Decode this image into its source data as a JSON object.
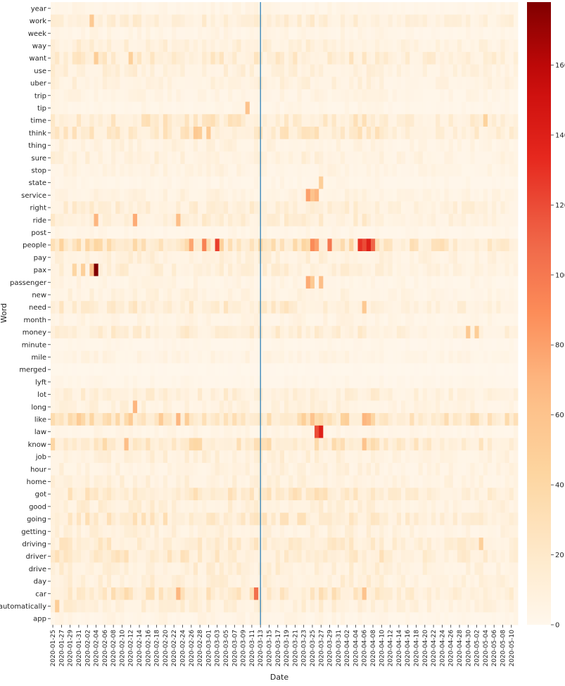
{
  "chart_data": {
    "type": "heatmap",
    "xlabel": "Date",
    "ylabel": "Word",
    "rows": [
      "year",
      "work",
      "week",
      "way",
      "want",
      "use",
      "uber",
      "trip",
      "tip",
      "time",
      "think",
      "thing",
      "sure",
      "stop",
      "state",
      "service",
      "right",
      "ride",
      "post",
      "people",
      "pay",
      "pax",
      "passenger",
      "new",
      "need",
      "month",
      "money",
      "minute",
      "mile",
      "merged",
      "lyft",
      "lot",
      "long",
      "like",
      "law",
      "know",
      "job",
      "hour",
      "home",
      "got",
      "good",
      "going",
      "getting",
      "driving",
      "driver",
      "drive",
      "day",
      "car",
      "automatically",
      "app"
    ],
    "date_start": "2020-01-25",
    "date_end": "2020-05-11",
    "x_tick_labels": [
      "2020-01-25",
      "2020-01-27",
      "2020-01-29",
      "2020-01-31",
      "2020-02-02",
      "2020-02-04",
      "2020-02-06",
      "2020-02-08",
      "2020-02-10",
      "2020-02-12",
      "2020-02-14",
      "2020-02-16",
      "2020-02-18",
      "2020-02-20",
      "2020-02-22",
      "2020-02-24",
      "2020-02-26",
      "2020-02-28",
      "2020-03-01",
      "2020-03-03",
      "2020-03-05",
      "2020-03-07",
      "2020-03-09",
      "2020-03-11",
      "2020-03-13",
      "2020-03-15",
      "2020-03-17",
      "2020-03-19",
      "2020-03-21",
      "2020-03-23",
      "2020-03-25",
      "2020-03-27",
      "2020-03-29",
      "2020-03-31",
      "2020-04-02",
      "2020-04-04",
      "2020-04-06",
      "2020-04-08",
      "2020-04-10",
      "2020-04-12",
      "2020-04-14",
      "2020-04-16",
      "2020-04-18",
      "2020-04-20",
      "2020-04-22",
      "2020-04-24",
      "2020-04-26",
      "2020-04-28",
      "2020-04-30",
      "2020-05-02",
      "2020-05-04",
      "2020-05-06",
      "2020-05-08",
      "2020-05-10"
    ],
    "vline_date": "2020-03-13",
    "colorbar": {
      "min": 0,
      "max": 178,
      "ticks": [
        0,
        20,
        40,
        60,
        80,
        100,
        120,
        140,
        160
      ],
      "colormap": "OrRd"
    },
    "base_levels": {
      "year": 5,
      "work": 13,
      "week": 5,
      "way": 12,
      "want": 17,
      "use": 11,
      "uber": 10,
      "trip": 6,
      "tip": 4,
      "time": 20,
      "think": 20,
      "thing": 8,
      "sure": 10,
      "stop": 7,
      "state": 4,
      "service": 8,
      "right": 14,
      "ride": 14,
      "post": 4,
      "people": 30,
      "pay": 11,
      "pax": 12,
      "passenger": 6,
      "new": 8,
      "need": 17,
      "month": 6,
      "money": 14,
      "minute": 3,
      "mile": 6,
      "merged": 1,
      "lyft": 3,
      "lot": 13,
      "long": 9,
      "like": 33,
      "law": 5,
      "know": 25,
      "job": 11,
      "hour": 9,
      "home": 10,
      "got": 20,
      "good": 12,
      "going": 20,
      "getting": 10,
      "driving": 18,
      "driver": 19,
      "drive": 13,
      "day": 12,
      "car": 22,
      "automatically": 12,
      "app": 5
    },
    "highlights": [
      {
        "word": "pax",
        "date": "2020-02-04",
        "value": 178
      },
      {
        "word": "pax",
        "date": "2020-02-03",
        "value": 60
      },
      {
        "word": "pax",
        "date": "2020-02-01",
        "value": 48
      },
      {
        "word": "pax",
        "date": "2020-01-30",
        "value": 42
      },
      {
        "word": "people",
        "date": "2020-03-03",
        "value": 125
      },
      {
        "word": "people",
        "date": "2020-02-29",
        "value": 95
      },
      {
        "word": "people",
        "date": "2020-02-26",
        "value": 78
      },
      {
        "word": "people",
        "date": "2020-03-25",
        "value": 90
      },
      {
        "word": "people",
        "date": "2020-03-26",
        "value": 80
      },
      {
        "word": "people",
        "date": "2020-03-29",
        "value": 100
      },
      {
        "word": "people",
        "date": "2020-04-05",
        "value": 130
      },
      {
        "word": "people",
        "date": "2020-04-06",
        "value": 120
      },
      {
        "word": "people",
        "date": "2020-04-07",
        "value": 140
      },
      {
        "word": "people",
        "date": "2020-04-08",
        "value": 110
      },
      {
        "word": "law",
        "date": "2020-03-27",
        "value": 140
      },
      {
        "word": "law",
        "date": "2020-03-26",
        "value": 120
      },
      {
        "word": "car",
        "date": "2020-03-12",
        "value": 105
      },
      {
        "word": "car",
        "date": "2020-02-23",
        "value": 70
      },
      {
        "word": "car",
        "date": "2020-04-06",
        "value": 60
      },
      {
        "word": "service",
        "date": "2020-03-24",
        "value": 80
      },
      {
        "word": "service",
        "date": "2020-03-25",
        "value": 60
      },
      {
        "word": "service",
        "date": "2020-03-26",
        "value": 70
      },
      {
        "word": "passenger",
        "date": "2020-03-24",
        "value": 75
      },
      {
        "word": "passenger",
        "date": "2020-03-25",
        "value": 55
      },
      {
        "word": "passenger",
        "date": "2020-03-27",
        "value": 65
      },
      {
        "word": "ride",
        "date": "2020-02-04",
        "value": 70
      },
      {
        "word": "ride",
        "date": "2020-02-13",
        "value": 75
      },
      {
        "word": "ride",
        "date": "2020-02-23",
        "value": 65
      },
      {
        "word": "long",
        "date": "2020-02-13",
        "value": 70
      },
      {
        "word": "like",
        "date": "2020-02-23",
        "value": 70
      },
      {
        "word": "like",
        "date": "2020-04-06",
        "value": 70
      },
      {
        "word": "like",
        "date": "2020-04-07",
        "value": 65
      },
      {
        "word": "like",
        "date": "2020-03-25",
        "value": 60
      },
      {
        "word": "know",
        "date": "2020-02-11",
        "value": 65
      },
      {
        "word": "know",
        "date": "2020-04-06",
        "value": 60
      },
      {
        "word": "tip",
        "date": "2020-03-10",
        "value": 60
      },
      {
        "word": "think",
        "date": "2020-02-27",
        "value": 55
      },
      {
        "word": "think",
        "date": "2020-02-28",
        "value": 50
      },
      {
        "word": "think",
        "date": "2020-03-01",
        "value": 55
      },
      {
        "word": "want",
        "date": "2020-02-04",
        "value": 50
      },
      {
        "word": "want",
        "date": "2020-02-12",
        "value": 48
      },
      {
        "word": "work",
        "date": "2020-02-03",
        "value": 55
      },
      {
        "word": "need",
        "date": "2020-04-06",
        "value": 55
      },
      {
        "word": "money",
        "date": "2020-04-30",
        "value": 55
      },
      {
        "word": "money",
        "date": "2020-05-02",
        "value": 50
      },
      {
        "word": "automatically",
        "date": "2020-01-26",
        "value": 50
      },
      {
        "word": "state",
        "date": "2020-03-27",
        "value": 50
      },
      {
        "word": "driving",
        "date": "2020-05-03",
        "value": 48
      },
      {
        "word": "time",
        "date": "2020-05-04",
        "value": 45
      }
    ]
  }
}
